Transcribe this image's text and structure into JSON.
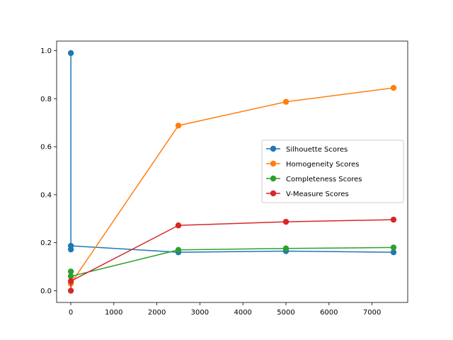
{
  "chart_data": {
    "type": "line",
    "title": "",
    "xlabel": "",
    "ylabel": "",
    "xlim": [
      -329,
      7829
    ],
    "ylim": [
      -0.049,
      1.04
    ],
    "xticks": [
      0,
      1000,
      2000,
      3000,
      4000,
      5000,
      6000,
      7000
    ],
    "yticks": [
      0.0,
      0.2,
      0.4,
      0.6,
      0.8,
      1.0
    ],
    "xtick_labels": [
      "0",
      "1000",
      "2000",
      "3000",
      "4000",
      "5000",
      "6000",
      "7000"
    ],
    "ytick_labels": [
      "0.0",
      "0.2",
      "0.4",
      "0.6",
      "0.8",
      "1.0"
    ],
    "grid": false,
    "legend_position": "center-right",
    "series": [
      {
        "name": "Silhouette Scores",
        "color": "#1f77b4",
        "x": [
          2,
          2,
          2,
          2500,
          5000,
          7500
        ],
        "y": [
          0.99,
          0.172,
          0.187,
          0.16,
          0.165,
          0.16
        ]
      },
      {
        "name": "Homogeneity Scores",
        "color": "#ff7f0e",
        "x": [
          2,
          2500,
          5000,
          7500
        ],
        "y": [
          0.03,
          0.688,
          0.787,
          0.845
        ]
      },
      {
        "name": "Completeness Scores",
        "color": "#2ca02c",
        "x": [
          2,
          2,
          2500,
          5000,
          7500
        ],
        "y": [
          0.08,
          0.06,
          0.17,
          0.176,
          0.18
        ]
      },
      {
        "name": "V-Measure Scores",
        "color": "#d62728",
        "x": [
          2,
          2,
          2500,
          5000,
          7500
        ],
        "y": [
          0.0,
          0.04,
          0.272,
          0.287,
          0.296
        ]
      }
    ]
  }
}
